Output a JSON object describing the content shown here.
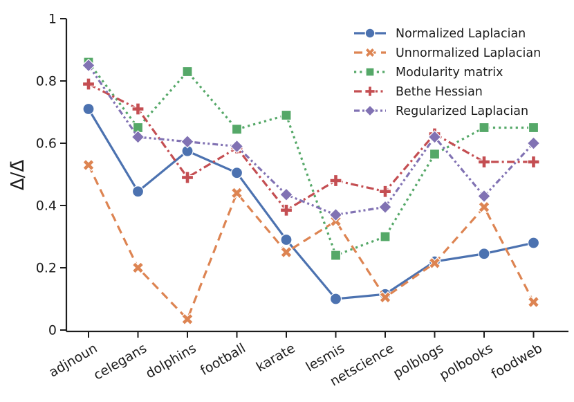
{
  "figure": {
    "background": "#ffffff",
    "axis_color": "#1c1c1c",
    "text_color": "#1c1c1c"
  },
  "chart_data": {
    "type": "line",
    "title": "",
    "xlabel": "",
    "ylabel": "Δ/Δ̄",
    "ylim": [
      0,
      1
    ],
    "ytick_labels": [
      "0",
      "0.2",
      "0.4",
      "0.6",
      "0.8",
      "1"
    ],
    "ytick_values": [
      0,
      0.2,
      0.4,
      0.6,
      0.8,
      1
    ],
    "grid": false,
    "legend_position": "upper right",
    "categories": [
      "adjnoun",
      "celegans",
      "dolphins",
      "football",
      "karate",
      "lesmis",
      "netscience",
      "polblogs",
      "polbooks",
      "foodweb"
    ],
    "series": [
      {
        "name": "Normalized Laplacian",
        "color": "#4C72B0",
        "linestyle": "solid",
        "marker": "circle",
        "values": [
          0.71,
          0.445,
          0.575,
          0.505,
          0.29,
          0.1,
          0.115,
          0.22,
          0.245,
          0.28
        ]
      },
      {
        "name": "Unnormalized Laplacian",
        "color": "#DD8452",
        "linestyle": "dashed",
        "marker": "x",
        "values": [
          0.53,
          0.2,
          0.035,
          0.44,
          0.25,
          0.35,
          0.105,
          0.215,
          0.395,
          0.09
        ]
      },
      {
        "name": "Modularity matrix",
        "color": "#55A868",
        "linestyle": "dotted",
        "marker": "square",
        "values": [
          0.86,
          0.65,
          0.83,
          0.645,
          0.69,
          0.24,
          0.3,
          0.565,
          0.65,
          0.65
        ]
      },
      {
        "name": "Bethe Hessian",
        "color": "#C44E52",
        "linestyle": "dashdot",
        "marker": "plus",
        "values": [
          0.79,
          0.71,
          0.49,
          0.585,
          0.385,
          0.48,
          0.445,
          0.63,
          0.54,
          0.54
        ]
      },
      {
        "name": "Regularized Laplacian",
        "color": "#8172B3",
        "linestyle": "dashdotdot",
        "marker": "diamond",
        "values": [
          0.85,
          0.62,
          0.605,
          0.59,
          0.435,
          0.37,
          0.395,
          0.62,
          0.43,
          0.6
        ]
      }
    ]
  }
}
